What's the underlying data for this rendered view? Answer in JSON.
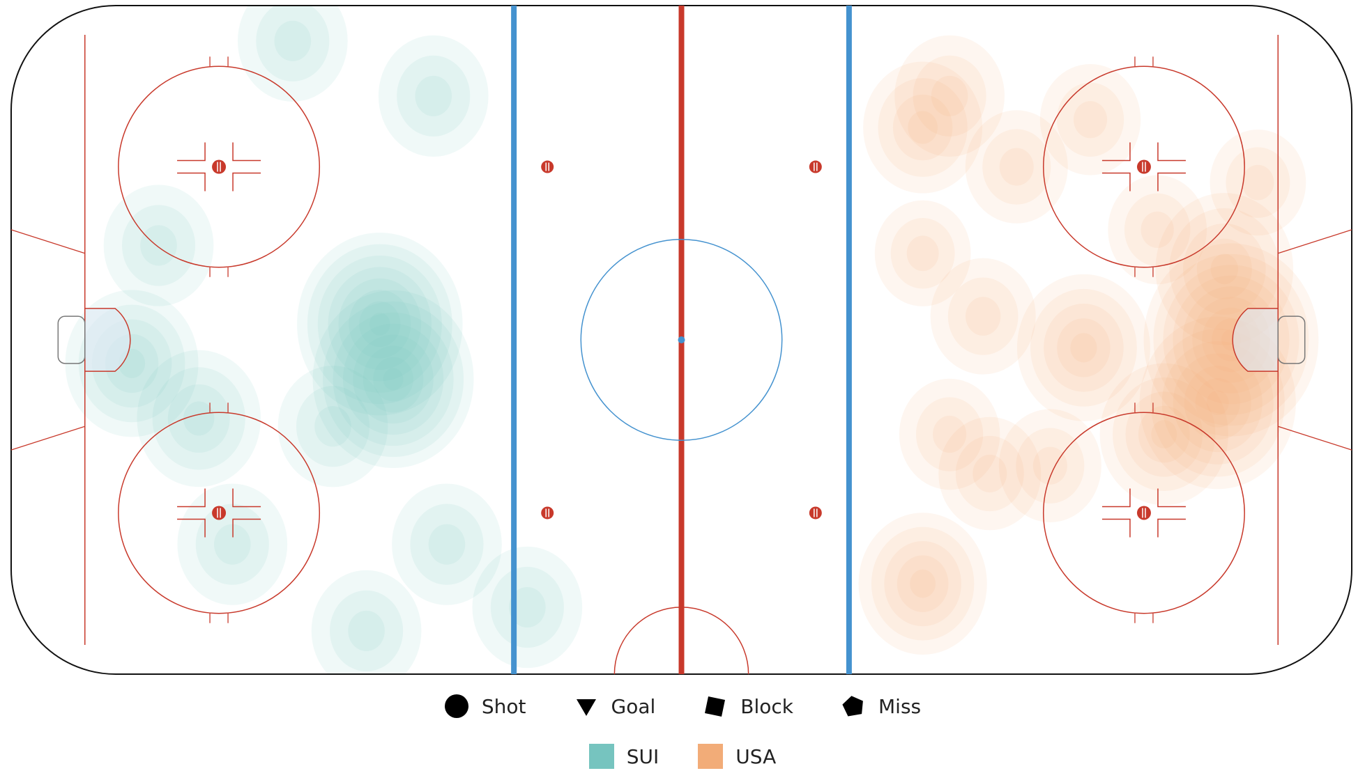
{
  "chart_data": {
    "type": "heatmap",
    "description_kind": "ice hockey rink shot-location density map",
    "teams": [
      {
        "name": "SUI",
        "color": "#76c4bf",
        "attacking_side": "left"
      },
      {
        "name": "USA",
        "color": "#f2ac78",
        "attacking_side": "right"
      }
    ],
    "event_legend": [
      {
        "label": "Shot",
        "marker": "circle"
      },
      {
        "label": "Goal",
        "marker": "triangle-down"
      },
      {
        "label": "Block",
        "marker": "square"
      },
      {
        "label": "Miss",
        "marker": "pentagon"
      }
    ],
    "rink": {
      "length_ft": 200,
      "width_ft": 85,
      "x_range": [
        -100,
        100
      ],
      "y_range": [
        -42.5,
        42.5
      ]
    },
    "density_clusters": [
      {
        "team": "SUI",
        "x": -82,
        "y": -3,
        "peak": 0.55
      },
      {
        "team": "SUI",
        "x": -78,
        "y": 12,
        "peak": 0.3
      },
      {
        "team": "SUI",
        "x": -72,
        "y": -10,
        "peak": 0.45
      },
      {
        "team": "SUI",
        "x": -45,
        "y": 2,
        "peak": 0.9
      },
      {
        "team": "SUI",
        "x": -43,
        "y": -5,
        "peak": 0.85
      },
      {
        "team": "SUI",
        "x": -58,
        "y": 38,
        "peak": 0.3
      },
      {
        "team": "SUI",
        "x": -37,
        "y": 31,
        "peak": 0.3
      },
      {
        "team": "SUI",
        "x": -52,
        "y": -11,
        "peak": 0.3
      },
      {
        "team": "SUI",
        "x": -67,
        "y": -26,
        "peak": 0.3
      },
      {
        "team": "SUI",
        "x": -35,
        "y": -26,
        "peak": 0.3
      },
      {
        "team": "SUI",
        "x": -23,
        "y": -34,
        "peak": 0.3
      },
      {
        "team": "SUI",
        "x": -47,
        "y": -37,
        "peak": 0.3
      },
      {
        "team": "USA",
        "x": 82,
        "y": 0,
        "peak": 1.0
      },
      {
        "team": "USA",
        "x": 80,
        "y": -8,
        "peak": 0.8
      },
      {
        "team": "USA",
        "x": 81,
        "y": 9,
        "peak": 0.6
      },
      {
        "team": "USA",
        "x": 60,
        "y": -1,
        "peak": 0.55
      },
      {
        "team": "USA",
        "x": 72,
        "y": -12,
        "peak": 0.5
      },
      {
        "team": "USA",
        "x": 36,
        "y": 27,
        "peak": 0.4
      },
      {
        "team": "USA",
        "x": 40,
        "y": 31,
        "peak": 0.3
      },
      {
        "team": "USA",
        "x": 50,
        "y": 22,
        "peak": 0.22
      },
      {
        "team": "USA",
        "x": 61,
        "y": 28,
        "peak": 0.2
      },
      {
        "team": "USA",
        "x": 45,
        "y": 3,
        "peak": 0.25
      },
      {
        "team": "USA",
        "x": 40,
        "y": -12,
        "peak": 0.2
      },
      {
        "team": "USA",
        "x": 46,
        "y": -17,
        "peak": 0.22
      },
      {
        "team": "USA",
        "x": 55,
        "y": -16,
        "peak": 0.22
      },
      {
        "team": "USA",
        "x": 36,
        "y": -31,
        "peak": 0.5
      },
      {
        "team": "USA",
        "x": 36,
        "y": 11,
        "peak": 0.15
      },
      {
        "team": "USA",
        "x": 71,
        "y": 14,
        "peak": 0.18
      },
      {
        "team": "USA",
        "x": 86,
        "y": 20,
        "peak": 0.15
      }
    ]
  }
}
